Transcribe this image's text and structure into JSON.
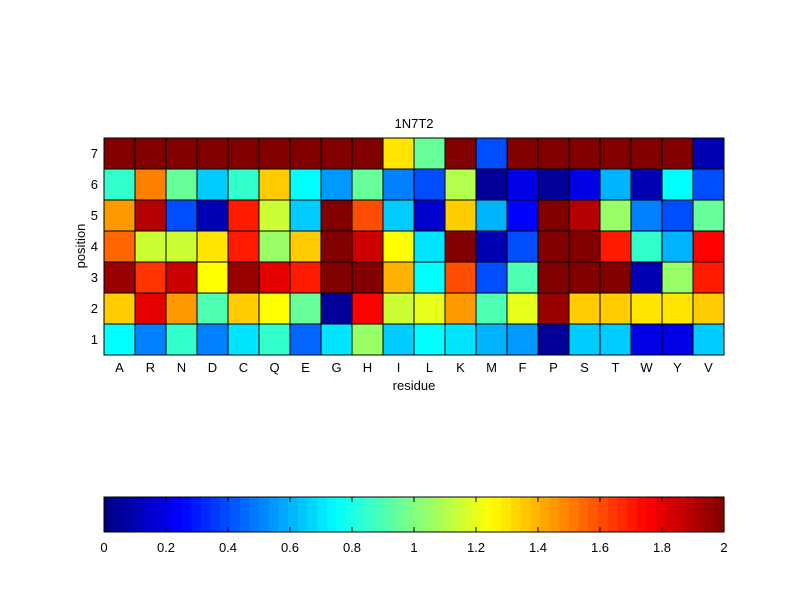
{
  "chart_data": {
    "type": "heatmap",
    "title": "1N7T2",
    "xlabel": "residue",
    "ylabel": "position",
    "x_categories": [
      "A",
      "R",
      "N",
      "D",
      "C",
      "Q",
      "E",
      "G",
      "H",
      "I",
      "L",
      "K",
      "M",
      "F",
      "P",
      "S",
      "T",
      "W",
      "Y",
      "V"
    ],
    "y_categories": [
      "1",
      "2",
      "3",
      "4",
      "5",
      "6",
      "7"
    ],
    "colormap": "jet",
    "clim": [
      0,
      2
    ],
    "colorbar": {
      "orientation": "horizontal",
      "placement": "bottom",
      "ticks": [
        "0",
        "0.2",
        "0.4",
        "0.6",
        "0.8",
        "1",
        "1.2",
        "1.4",
        "1.6",
        "1.8",
        "2"
      ]
    },
    "grid": true,
    "rows": [
      {
        "position": "1",
        "values": [
          0.75,
          0.5,
          0.85,
          0.5,
          0.7,
          0.85,
          0.45,
          0.7,
          1.05,
          0.65,
          0.75,
          0.7,
          0.6,
          0.55,
          0.05,
          0.65,
          0.65,
          0.2,
          0.2,
          0.65
        ]
      },
      {
        "position": "2",
        "values": [
          1.35,
          1.8,
          1.45,
          0.9,
          1.35,
          1.25,
          0.95,
          0.05,
          1.75,
          1.15,
          1.2,
          1.45,
          0.9,
          1.2,
          1.95,
          1.35,
          1.35,
          1.3,
          1.3,
          1.35
        ]
      },
      {
        "position": "3",
        "values": [
          1.95,
          1.65,
          1.85,
          1.25,
          1.95,
          1.8,
          1.7,
          2.0,
          2.0,
          1.4,
          0.75,
          1.6,
          0.4,
          0.9,
          2.0,
          2.0,
          2.0,
          0.1,
          1.05,
          1.7
        ]
      },
      {
        "position": "4",
        "values": [
          1.55,
          1.15,
          1.15,
          1.3,
          1.7,
          1.05,
          1.35,
          2.0,
          1.85,
          1.25,
          0.7,
          2.0,
          0.1,
          0.4,
          2.0,
          2.0,
          1.7,
          0.85,
          0.6,
          1.75
        ]
      },
      {
        "position": "5",
        "values": [
          1.45,
          1.9,
          0.4,
          0.1,
          1.7,
          1.15,
          0.65,
          2.0,
          1.6,
          0.65,
          0.15,
          1.35,
          0.6,
          0.25,
          2.0,
          1.9,
          1.05,
          0.5,
          0.4,
          0.95
        ]
      },
      {
        "position": "6",
        "values": [
          0.85,
          1.5,
          0.95,
          0.65,
          0.85,
          1.35,
          0.75,
          0.55,
          0.95,
          0.5,
          0.4,
          1.1,
          0.05,
          0.2,
          0.05,
          0.2,
          0.6,
          0.1,
          0.75,
          0.4
        ]
      },
      {
        "position": "7",
        "values": [
          2.0,
          2.0,
          2.0,
          2.0,
          2.0,
          2.0,
          2.0,
          2.0,
          2.0,
          1.3,
          0.95,
          2.0,
          0.4,
          2.0,
          2.0,
          2.0,
          2.0,
          2.0,
          2.0,
          0.1
        ]
      }
    ]
  }
}
